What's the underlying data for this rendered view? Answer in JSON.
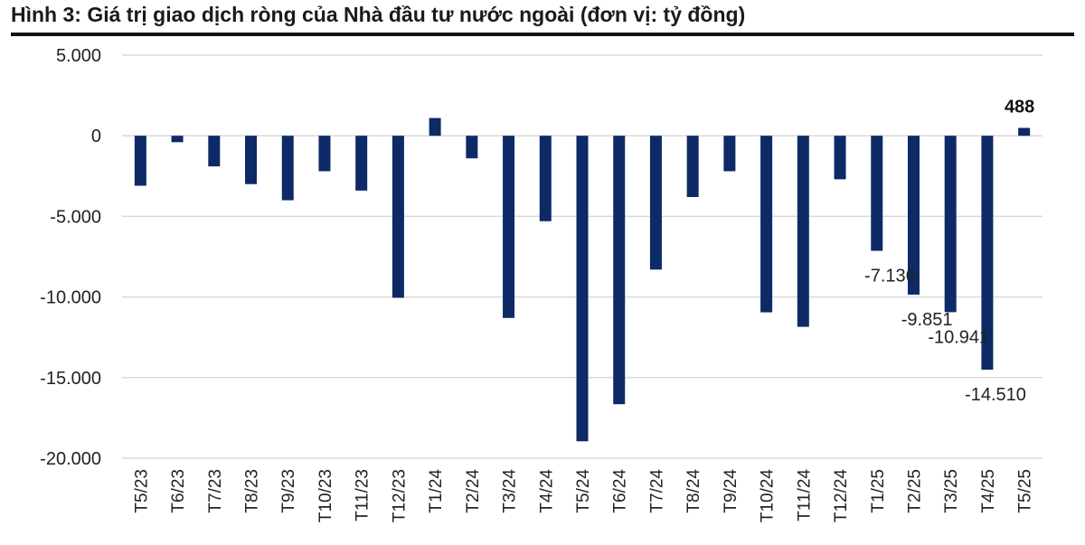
{
  "figure_title": "Hình 3: Giá trị giao dịch ròng của Nhà đầu tư nước ngoài (đơn vị: tỷ đồng)",
  "chart_data": {
    "type": "bar",
    "title": "Hình 3: Giá trị giao dịch ròng của Nhà đầu tư nước ngoài (đơn vị: tỷ đồng)",
    "categories": [
      "T5/23",
      "T6/23",
      "T7/23",
      "T8/23",
      "T9/23",
      "T10/23",
      "T11/23",
      "T12/23",
      "T1/24",
      "T2/24",
      "T3/24",
      "T4/24",
      "T5/24",
      "T6/24",
      "T7/24",
      "T8/24",
      "T9/24",
      "T10/24",
      "T11/24",
      "T12/24",
      "T1/25",
      "T2/25",
      "T3/25",
      "T4/25",
      "T5/25"
    ],
    "values": [
      -3100,
      -400,
      -1900,
      -3000,
      -4000,
      -2200,
      -3400,
      -10050,
      1100,
      -1400,
      -11300,
      -5300,
      -18950,
      -16650,
      -8300,
      -3800,
      -2200,
      -10950,
      -11850,
      -2700,
      -7136,
      -9851,
      -10941,
      -14510,
      488
    ],
    "y_ticks": [
      5000,
      0,
      -5000,
      -10000,
      -15000,
      -20000
    ],
    "y_tick_labels": [
      "5.000",
      "0",
      "-5.000",
      "-10.000",
      "-15.000",
      "-20.000"
    ],
    "ylim": [
      -20000,
      5000
    ],
    "grid": true,
    "legend": "none",
    "bar_color": "#0d2a66",
    "data_labels": [
      {
        "category": "T1/25",
        "text": "-7.136",
        "bold": false
      },
      {
        "category": "T2/25",
        "text": "-9.851",
        "bold": false
      },
      {
        "category": "T3/25",
        "text": "-10.941",
        "bold": false
      },
      {
        "category": "T4/25",
        "text": "-14.510",
        "bold": false
      },
      {
        "category": "T5/25",
        "text": "488",
        "bold": true
      }
    ]
  }
}
